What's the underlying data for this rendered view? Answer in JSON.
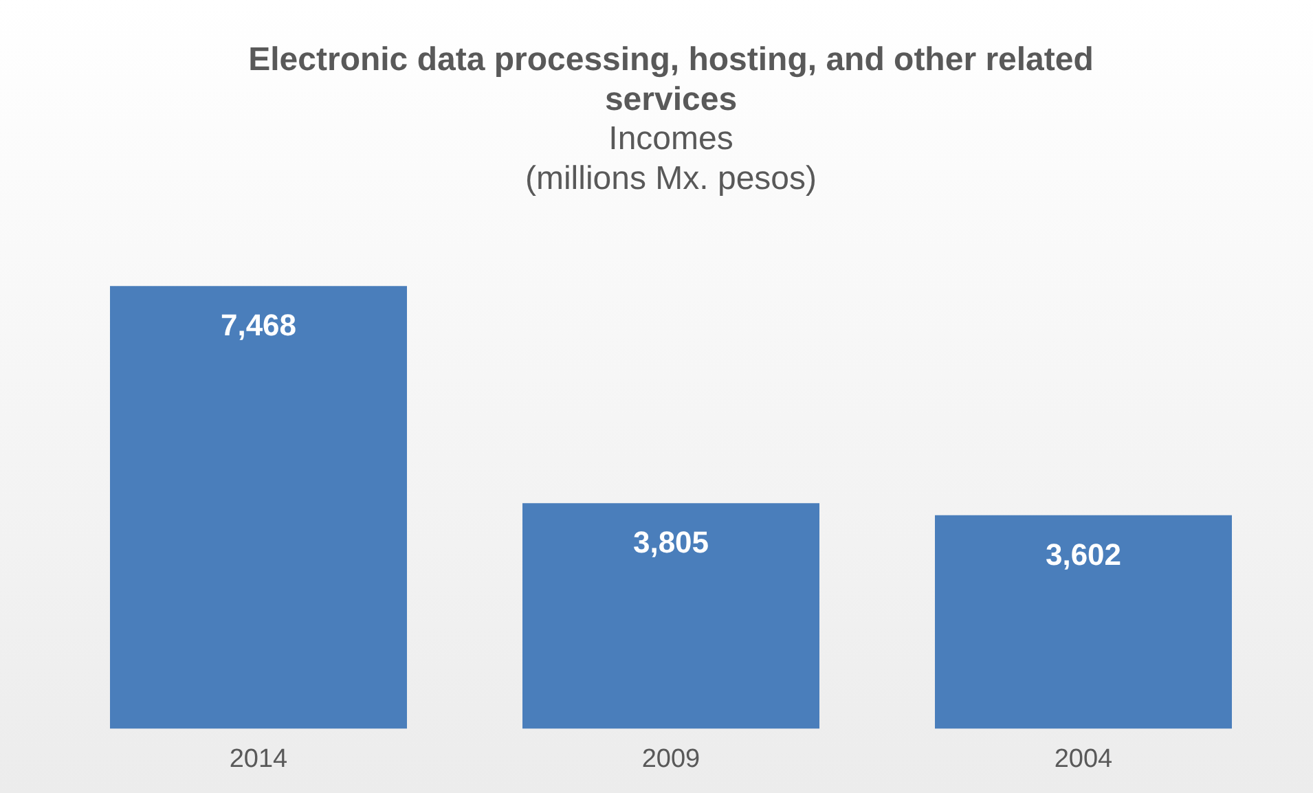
{
  "chart_data": {
    "type": "bar",
    "title": "Electronic data processing, hosting, and other related services",
    "subtitle": "Incomes\n(millions Mx. pesos)",
    "categories": [
      "2014",
      "2009",
      "2004"
    ],
    "values": [
      7468,
      3805,
      3602
    ],
    "value_labels": [
      "7,468",
      "3,805",
      "3,602"
    ],
    "color": "#4a7ebb",
    "grid": false,
    "legend": false
  }
}
